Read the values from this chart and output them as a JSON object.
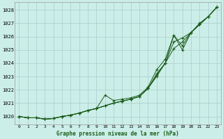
{
  "title": "Graphe pression niveau de la mer (hPa)",
  "bg_color": "#cceee8",
  "grid_color": "#aacccc",
  "line_color": "#1a5c1a",
  "x_labels": [
    "0",
    "1",
    "2",
    "3",
    "4",
    "5",
    "6",
    "7",
    "8",
    "9",
    "10",
    "11",
    "12",
    "13",
    "14",
    "15",
    "16",
    "17",
    "18",
    "19",
    "20",
    "21",
    "22",
    "23"
  ],
  "ylim": [
    1019.4,
    1028.6
  ],
  "yticks": [
    1020,
    1021,
    1022,
    1023,
    1024,
    1025,
    1026,
    1027,
    1028
  ],
  "line_main": [
    1020.0,
    1019.9,
    1019.9,
    1019.8,
    1019.85,
    1020.0,
    1020.1,
    1020.25,
    1020.45,
    1020.6,
    1021.6,
    1021.2,
    1021.3,
    1021.4,
    1021.6,
    1022.2,
    1023.5,
    1024.3,
    1026.1,
    1025.0,
    1026.3,
    1027.0,
    1027.5,
    1028.2
  ],
  "line_a": [
    1020.0,
    1019.9,
    1019.9,
    1019.8,
    1019.85,
    1020.0,
    1020.1,
    1020.25,
    1020.45,
    1020.6,
    1020.8,
    1021.0,
    1021.15,
    1021.3,
    1021.5,
    1022.1,
    1023.2,
    1024.0,
    1025.1,
    1025.6,
    1026.3,
    1026.9,
    1027.5,
    1028.2
  ],
  "line_b": [
    1020.0,
    1019.9,
    1019.9,
    1019.8,
    1019.85,
    1020.0,
    1020.1,
    1020.25,
    1020.45,
    1020.6,
    1020.8,
    1021.0,
    1021.15,
    1021.3,
    1021.5,
    1022.1,
    1023.1,
    1024.0,
    1025.6,
    1025.9,
    1026.3,
    1026.9,
    1027.5,
    1028.2
  ],
  "line_c": [
    1020.0,
    1019.9,
    1019.9,
    1019.8,
    1019.85,
    1020.0,
    1020.1,
    1020.25,
    1020.45,
    1020.6,
    1020.8,
    1021.0,
    1021.15,
    1021.3,
    1021.5,
    1022.1,
    1023.0,
    1024.0,
    1026.1,
    1025.3,
    1026.3,
    1026.9,
    1027.5,
    1028.2
  ]
}
